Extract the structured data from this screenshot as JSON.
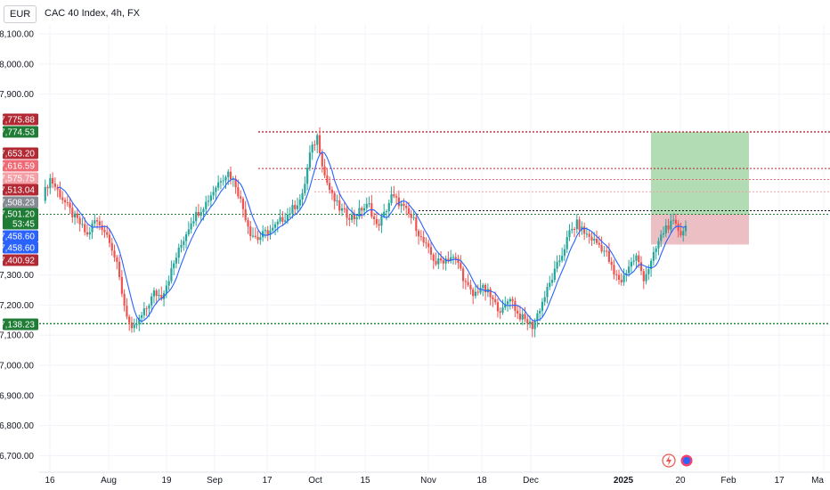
{
  "header": {
    "currency": "EUR",
    "symbol": "CAC 40 Index, 4h, FX"
  },
  "y_axis": {
    "labels": [
      "8,100.00",
      "8,000.00",
      "7,900.00",
      "7,300.00",
      "7,200.00",
      "7,100.00",
      "7,000.00",
      "6,900.00",
      "6,800.00",
      "6,700.00"
    ],
    "values": [
      8100,
      8000,
      7900,
      7300,
      7200,
      7100,
      7000,
      6900,
      6800,
      6700
    ]
  },
  "x_axis": {
    "labels": [
      "16",
      "Aug",
      "19",
      "Sep",
      "17",
      "Oct",
      "15",
      "Nov",
      "18",
      "Dec",
      "2025",
      "20",
      "Feb",
      "17",
      "Ma"
    ]
  },
  "price_tags": [
    {
      "text": "7,775.88",
      "value": 7775.88,
      "color": "#b22833"
    },
    {
      "text": "7,774.53",
      "value": 7774.53,
      "color": "#1e7c34"
    },
    {
      "text": "7,653.20",
      "value": 7653.2,
      "color": "#b22833"
    },
    {
      "text": "7,616.59",
      "value": 7616.59,
      "color": "#f06a75"
    },
    {
      "text": "7,575.75",
      "value": 7575.75,
      "color": "#f4a0a7"
    },
    {
      "text": "7,513.04",
      "value": 7513.04,
      "color": "#b22833"
    },
    {
      "text": "7,508.23",
      "value": 7508.23,
      "color": "#878b94"
    },
    {
      "text": "7,501.20",
      "value": 7501.2,
      "color": "#1e7c34",
      "countdown": "53:45"
    },
    {
      "text": "7,458.60",
      "value": 7458.6,
      "color": "#2962ff"
    },
    {
      "text": "7,458.60",
      "value": 7458.6,
      "color": "#2962ff"
    },
    {
      "text": "7,400.92",
      "value": 7400.92,
      "color": "#b22833"
    },
    {
      "text": "7,138.23",
      "value": 7138.23,
      "color": "#1e7c34"
    }
  ],
  "levels": [
    {
      "value": 7774.53,
      "color": "#b22833",
      "style": "dotted"
    },
    {
      "value": 7653.2,
      "color": "#b22833",
      "style": "dotted"
    },
    {
      "value": 7616.59,
      "color": "#f06a75",
      "style": "dotted"
    },
    {
      "value": 7575.75,
      "color": "#f4a0a7",
      "style": "dotted"
    },
    {
      "value": 7513.04,
      "color": "#131722",
      "style": "dotted"
    },
    {
      "value": 7501.2,
      "color": "#1e7c34",
      "style": "dotted"
    },
    {
      "value": 7138.23,
      "color": "#1e7c34",
      "style": "dotted"
    }
  ],
  "position": {
    "entry": 7501.2,
    "target": 7774.53,
    "stop": 7400.92,
    "profit_color": "#a5d6a7",
    "loss_color": "#e8b4b8"
  },
  "chart_data": {
    "type": "candlestick",
    "title": "CAC 40 Index, 4h, FX",
    "xlabel": "",
    "ylabel": "",
    "ylim": [
      6680,
      8130
    ],
    "x_tick_labels": [
      "16",
      "Aug",
      "19",
      "Sep",
      "17",
      "Oct",
      "15",
      "Nov",
      "18",
      "Dec",
      "2025",
      "20",
      "Feb",
      "17",
      "Ma"
    ],
    "close_path": [
      [
        0,
        7560
      ],
      [
        3,
        7620
      ],
      [
        6,
        7580
      ],
      [
        9,
        7540
      ],
      [
        12,
        7500
      ],
      [
        15,
        7470
      ],
      [
        18,
        7430
      ],
      [
        21,
        7480
      ],
      [
        24,
        7460
      ],
      [
        27,
        7420
      ],
      [
        30,
        7330
      ],
      [
        33,
        7200
      ],
      [
        36,
        7110
      ],
      [
        39,
        7150
      ],
      [
        42,
        7190
      ],
      [
        45,
        7240
      ],
      [
        48,
        7230
      ],
      [
        51,
        7290
      ],
      [
        54,
        7360
      ],
      [
        57,
        7420
      ],
      [
        60,
        7480
      ],
      [
        63,
        7510
      ],
      [
        66,
        7540
      ],
      [
        69,
        7580
      ],
      [
        72,
        7620
      ],
      [
        75,
        7640
      ],
      [
        78,
        7600
      ],
      [
        81,
        7520
      ],
      [
        84,
        7440
      ],
      [
        87,
        7420
      ],
      [
        90,
        7440
      ],
      [
        93,
        7450
      ],
      [
        96,
        7480
      ],
      [
        99,
        7500
      ],
      [
        102,
        7530
      ],
      [
        105,
        7560
      ],
      [
        108,
        7700
      ],
      [
        111,
        7760
      ],
      [
        114,
        7630
      ],
      [
        117,
        7560
      ],
      [
        120,
        7520
      ],
      [
        123,
        7500
      ],
      [
        126,
        7490
      ],
      [
        129,
        7520
      ],
      [
        132,
        7530
      ],
      [
        135,
        7460
      ],
      [
        138,
        7500
      ],
      [
        141,
        7560
      ],
      [
        144,
        7540
      ],
      [
        147,
        7510
      ],
      [
        150,
        7480
      ],
      [
        153,
        7420
      ],
      [
        156,
        7380
      ],
      [
        159,
        7340
      ],
      [
        162,
        7350
      ],
      [
        165,
        7360
      ],
      [
        168,
        7340
      ],
      [
        171,
        7270
      ],
      [
        174,
        7230
      ],
      [
        177,
        7260
      ],
      [
        180,
        7240
      ],
      [
        183,
        7200
      ],
      [
        186,
        7180
      ],
      [
        189,
        7230
      ],
      [
        192,
        7170
      ],
      [
        195,
        7150
      ],
      [
        198,
        7130
      ],
      [
        201,
        7190
      ],
      [
        204,
        7250
      ],
      [
        207,
        7310
      ],
      [
        210,
        7370
      ],
      [
        213,
        7440
      ],
      [
        216,
        7470
      ],
      [
        219,
        7440
      ],
      [
        222,
        7420
      ],
      [
        225,
        7400
      ],
      [
        228,
        7370
      ],
      [
        231,
        7300
      ],
      [
        234,
        7280
      ],
      [
        237,
        7330
      ],
      [
        240,
        7360
      ],
      [
        243,
        7290
      ],
      [
        246,
        7340
      ],
      [
        249,
        7410
      ],
      [
        252,
        7460
      ],
      [
        255,
        7470
      ],
      [
        258,
        7440
      ],
      [
        260,
        7460
      ]
    ],
    "sma_series": "blue moving average line following the closes"
  }
}
